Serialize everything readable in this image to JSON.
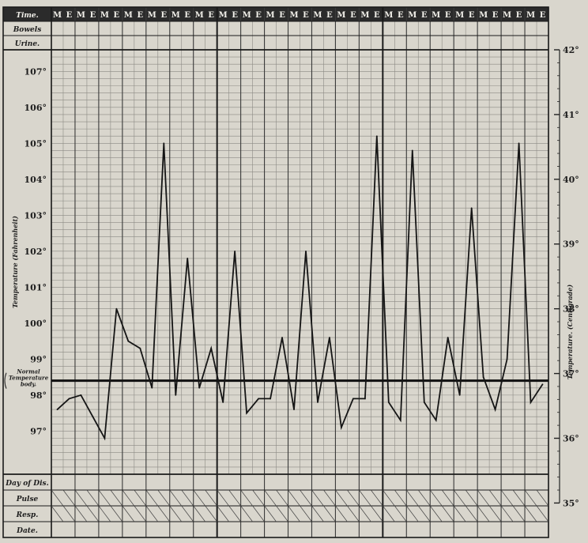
{
  "chart_data": {
    "type": "line",
    "row_labels": {
      "time": "Time.",
      "bowels": "Bowels",
      "urine": "Urine.",
      "day": "Day of Dis.",
      "pulse": "Pulse",
      "resp": "Resp.",
      "date": "Date."
    },
    "normal_label": [
      "Normal",
      "Temperature",
      "body."
    ],
    "time_markers": [
      "M",
      "E"
    ],
    "days": 21,
    "y_left_label": "Temperature (Fahrenheit)",
    "y_right_label": "Temperature. (Centigrade)",
    "fahrenheit_ticks": [
      "107°",
      "106°",
      "105°",
      "104°",
      "103°",
      "102°",
      "101°",
      "100°",
      "99°",
      "98°",
      "97°"
    ],
    "fahrenheit_tick_values": [
      107,
      106,
      105,
      104,
      103,
      102,
      101,
      100,
      99,
      98,
      97
    ],
    "celsius_ticks": [
      "42°",
      "41°",
      "40°",
      "39°",
      "38°",
      "37°",
      "36°",
      "35°"
    ],
    "celsius_tick_values": [
      42,
      41,
      40,
      39,
      38,
      37,
      36,
      35
    ],
    "ylim_fahrenheit": [
      95.8,
      107.6
    ],
    "normal_value": 98.4,
    "series": [
      {
        "values": [
          97.6,
          97.9,
          98.0,
          97.4,
          96.8,
          100.4,
          99.5,
          99.3,
          98.2,
          105.0,
          98.0,
          101.8,
          98.2,
          99.3,
          97.8,
          102.0,
          97.5,
          97.9,
          97.9,
          99.6,
          97.6,
          102.0,
          97.8,
          99.6,
          97.1,
          97.9,
          97.9,
          105.2,
          97.8,
          97.3,
          104.8,
          97.8,
          97.3,
          99.6,
          98.0,
          103.2,
          98.5,
          97.6,
          99.0,
          105.0,
          97.8,
          98.3
        ]
      }
    ]
  }
}
